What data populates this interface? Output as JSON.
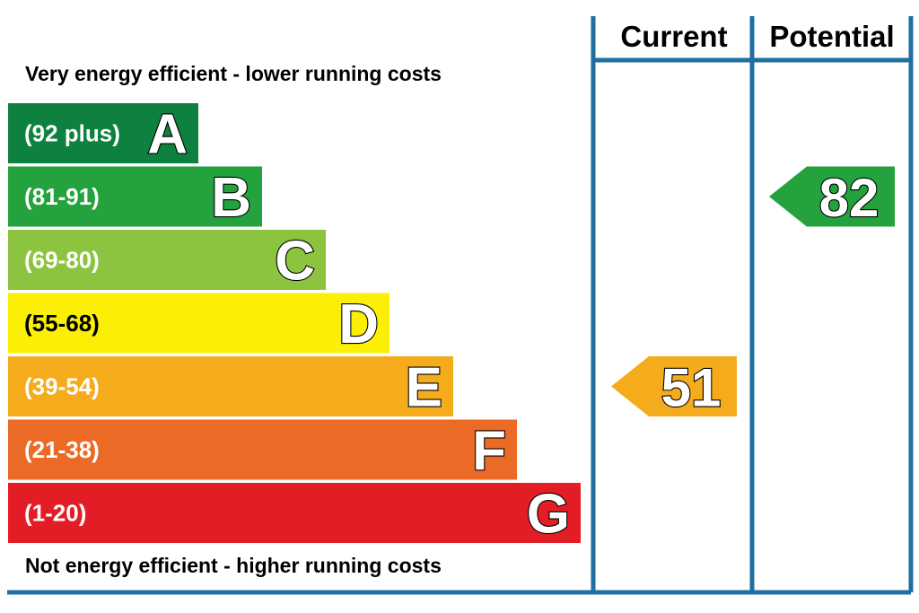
{
  "chart_data": {
    "type": "bar",
    "top_label": "Very energy efficient - lower running costs",
    "bottom_label": "Not energy efficient - higher running costs",
    "columns": [
      "Current",
      "Potential"
    ],
    "bands": [
      {
        "letter": "A",
        "range": "(92 plus)",
        "min": 92,
        "max": 100,
        "color": "#0e8140"
      },
      {
        "letter": "B",
        "range": "(81-91)",
        "min": 81,
        "max": 91,
        "color": "#23a23d"
      },
      {
        "letter": "C",
        "range": "(69-80)",
        "min": 69,
        "max": 80,
        "color": "#8cc43f"
      },
      {
        "letter": "D",
        "range": "(55-68)",
        "min": 55,
        "max": 68,
        "color": "#fbef05"
      },
      {
        "letter": "E",
        "range": "(39-54)",
        "min": 39,
        "max": 54,
        "color": "#f4ac1d"
      },
      {
        "letter": "F",
        "range": "(21-38)",
        "min": 21,
        "max": 38,
        "color": "#eb6a26"
      },
      {
        "letter": "G",
        "range": "(1-20)",
        "min": 1,
        "max": 20,
        "color": "#e31d25"
      }
    ],
    "current": {
      "value": 51,
      "band": "E",
      "color": "#f4ac1d"
    },
    "potential": {
      "value": 82,
      "band": "B",
      "color": "#23a23d"
    },
    "frame_color": "#1f6fa0"
  }
}
